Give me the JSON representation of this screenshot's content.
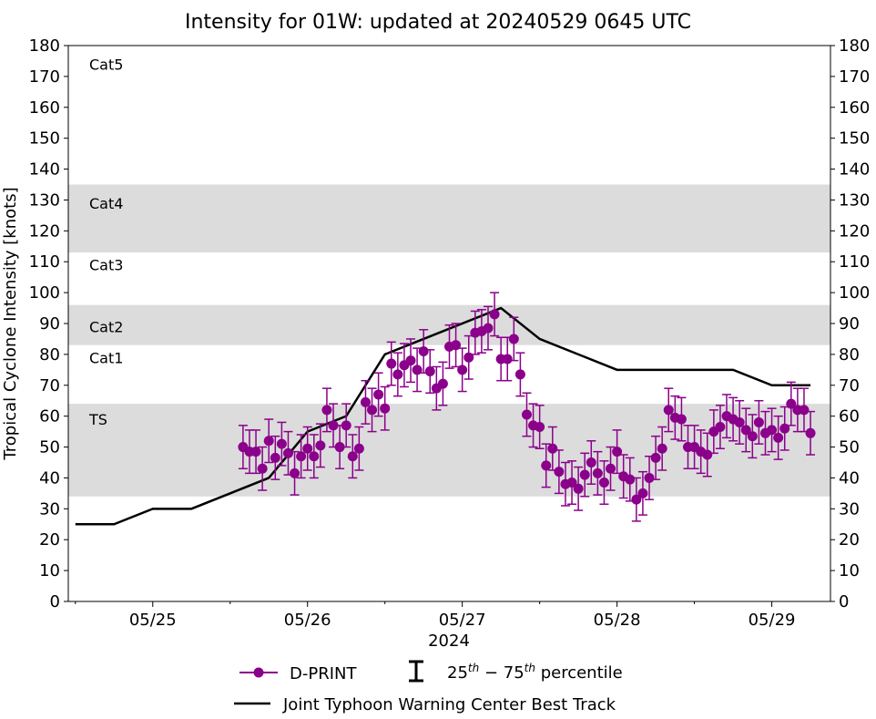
{
  "chart_data": {
    "type": "scatter",
    "title": "Intensity for 01W: updated at 20240529 0645 UTC",
    "xlabel": "2024",
    "ylabel": "Tropical Cyclone Intensity [knots]",
    "x_units": "hours since 05/25 00Z",
    "xlim": [
      -13.1,
      105.1
    ],
    "ylim": [
      0,
      180
    ],
    "yticks": [
      0,
      10,
      20,
      30,
      40,
      50,
      60,
      70,
      80,
      90,
      100,
      110,
      120,
      130,
      140,
      150,
      160,
      170,
      180
    ],
    "xticks": [
      {
        "x": 0,
        "label": "05/25"
      },
      {
        "x": 24,
        "label": "05/26"
      },
      {
        "x": 48,
        "label": "05/27"
      },
      {
        "x": 72,
        "label": "05/28"
      },
      {
        "x": 96,
        "label": "05/29"
      }
    ],
    "minor_xticks": [
      -12,
      12,
      36,
      60,
      84
    ],
    "categories": [
      {
        "label": "TS",
        "low": 34,
        "high": 64,
        "shaded": true,
        "label_y": 59
      },
      {
        "label": "Cat1",
        "low": 64,
        "high": 83,
        "shaded": false,
        "label_y": 79
      },
      {
        "label": "Cat2",
        "low": 83,
        "high": 96,
        "shaded": true,
        "label_y": 89
      },
      {
        "label": "Cat3",
        "low": 96,
        "high": 113,
        "shaded": false,
        "label_y": 109
      },
      {
        "label": "Cat4",
        "low": 113,
        "high": 135,
        "shaded": true,
        "label_y": 129
      },
      {
        "label": "Cat5",
        "low": 135,
        "high": 180,
        "shaded": false,
        "label_y": 174
      }
    ],
    "series": [
      {
        "name": "D-PRINT",
        "color": "#8b008b",
        "start_hour": 14,
        "step_hours": 1,
        "values": [
          50,
          48.5,
          48.5,
          43,
          52,
          46.5,
          51,
          48,
          41.5,
          47,
          49.5,
          47,
          50.5,
          62,
          57,
          50,
          57,
          47,
          49.5,
          64.5,
          62,
          67,
          62.5,
          77,
          73.5,
          76.5,
          78,
          75,
          81,
          74.5,
          69,
          70.5,
          82.5,
          83,
          75,
          79,
          87,
          87.5,
          88.5,
          93,
          78.5,
          78.5,
          85,
          73.5,
          60.5,
          57,
          56.5,
          44,
          49.5,
          42,
          38,
          38.5,
          36.5,
          41,
          45,
          41.5,
          38.5,
          43,
          48.5,
          40.5,
          39.5,
          33,
          35,
          40,
          46.5,
          49.5,
          62,
          59.5,
          59,
          50,
          50,
          48.5,
          47.5,
          55,
          56.5,
          60,
          59,
          58,
          55.5,
          53.5,
          58,
          54.5,
          55.5,
          53,
          56,
          64,
          62,
          62,
          54.5
        ],
        "error_half_width": 7
      },
      {
        "name": "Joint Typhoon Warning Center Best Track",
        "color": "#000000",
        "x": [
          -12,
          -6,
          0,
          6,
          18,
          24,
          30,
          36,
          42,
          48,
          54,
          60,
          66,
          72,
          78,
          84,
          90,
          96,
          102
        ],
        "values": [
          25,
          25,
          30,
          30,
          40,
          55,
          60,
          80,
          85,
          90,
          95,
          85,
          80,
          75,
          75,
          75,
          75,
          70,
          70
        ]
      }
    ],
    "legend": {
      "placement": "bottom",
      "dprint": "D-PRINT",
      "percentile_prefix": "25",
      "percentile_sup1": "th",
      "percentile_mid": " − 75",
      "percentile_sup2": "th",
      "percentile_suffix": " percentile",
      "best_track": "Joint Typhoon Warning Center Best Track"
    }
  }
}
